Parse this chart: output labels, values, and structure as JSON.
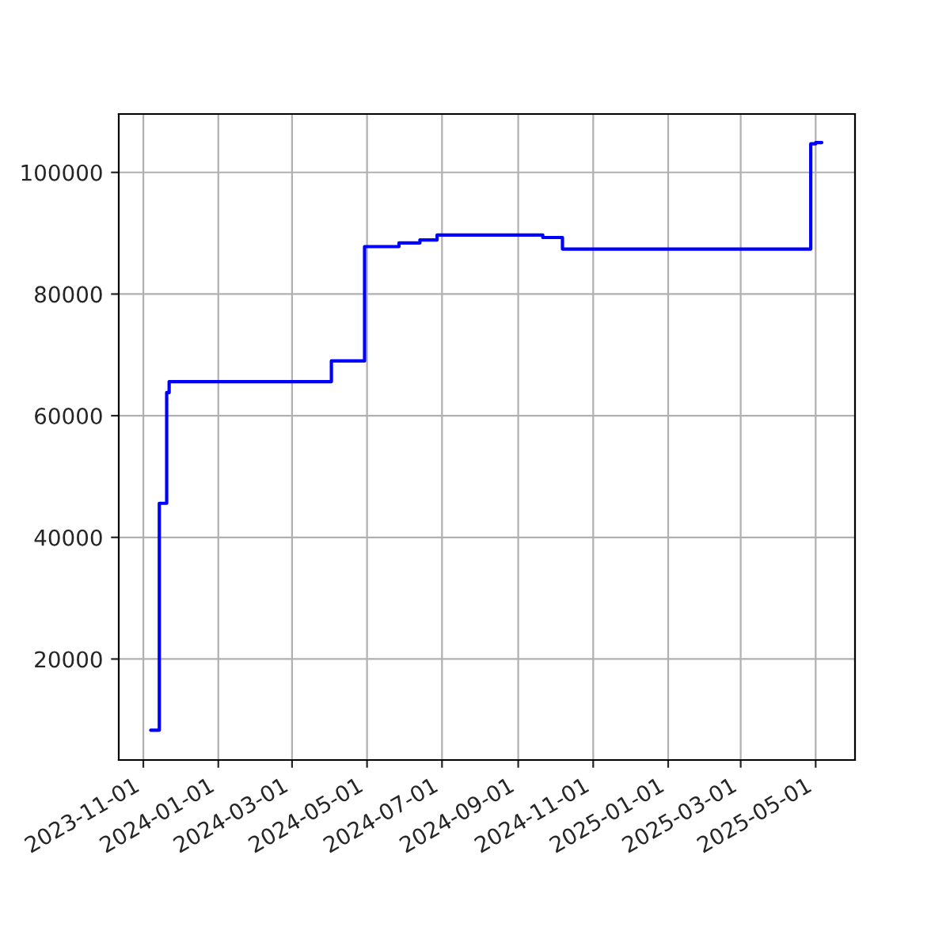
{
  "chart_data": {
    "type": "step",
    "x": [
      "2023-11-07",
      "2023-11-14",
      "2023-11-20",
      "2023-11-22",
      "2024-04-02",
      "2024-04-29",
      "2024-05-27",
      "2024-06-13",
      "2024-06-27",
      "2024-09-21",
      "2024-10-07",
      "2025-04-27",
      "2025-05-01",
      "2025-05-06"
    ],
    "series": [
      {
        "color": "#0000ff",
        "values": [
          8300,
          45600,
          63800,
          65600,
          69000,
          87800,
          88400,
          88900,
          89700,
          89300,
          87400,
          104700,
          104900,
          104900
        ]
      }
    ],
    "xlim": [
      "2023-10-12",
      "2025-06-02"
    ],
    "xticks": [
      "2023-11-01",
      "2024-01-01",
      "2024-03-01",
      "2024-05-01",
      "2024-07-01",
      "2024-09-01",
      "2024-11-01",
      "2025-01-01",
      "2025-03-01",
      "2025-05-01"
    ],
    "ylim": [
      3400,
      109600
    ],
    "yticks": [
      20000,
      40000,
      60000,
      80000,
      100000
    ],
    "grid": true
  }
}
